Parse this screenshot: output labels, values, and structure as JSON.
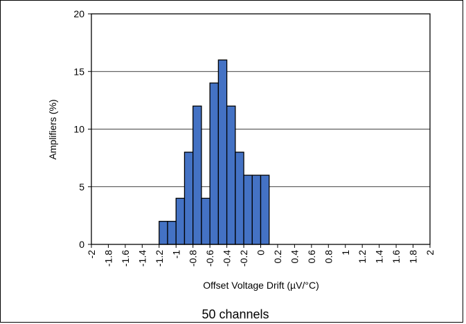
{
  "chart_data": {
    "type": "bar",
    "subtype": "histogram",
    "xlabel": "Offset Voltage Drift (µV/°C)",
    "ylabel": "Amplifiers (%)",
    "caption": "50 channels",
    "ylim": [
      0,
      20
    ],
    "yticks": [
      0,
      5,
      10,
      15,
      20
    ],
    "xlim": [
      -2,
      2
    ],
    "xtick_labels": [
      "-2",
      "-1.8",
      "-1.6",
      "-1.4",
      "-1.2",
      "-1",
      "-0.8",
      "-0.6",
      "-0.4",
      "-0.2",
      "0",
      "0.2",
      "0.4",
      "0.6",
      "0.8",
      "1",
      "1.2",
      "1.4",
      "1.6",
      "1.8",
      "2"
    ],
    "bin_width": 0.1,
    "bins": [
      {
        "start": -1.2,
        "end": -1.1,
        "value": 2
      },
      {
        "start": -1.1,
        "end": -1.0,
        "value": 2
      },
      {
        "start": -1.0,
        "end": -0.9,
        "value": 4
      },
      {
        "start": -0.9,
        "end": -0.8,
        "value": 8
      },
      {
        "start": -0.8,
        "end": -0.7,
        "value": 12
      },
      {
        "start": -0.7,
        "end": -0.6,
        "value": 4
      },
      {
        "start": -0.6,
        "end": -0.5,
        "value": 14
      },
      {
        "start": -0.5,
        "end": -0.4,
        "value": 16
      },
      {
        "start": -0.4,
        "end": -0.3,
        "value": 12
      },
      {
        "start": -0.3,
        "end": -0.2,
        "value": 8
      },
      {
        "start": -0.2,
        "end": -0.1,
        "value": 6
      },
      {
        "start": -0.1,
        "end": 0.0,
        "value": 6
      },
      {
        "start": 0.0,
        "end": 0.1,
        "value": 6
      }
    ],
    "grid": "horizontal",
    "bar_color": "#4472C4",
    "bar_edge_color": "#000000"
  }
}
